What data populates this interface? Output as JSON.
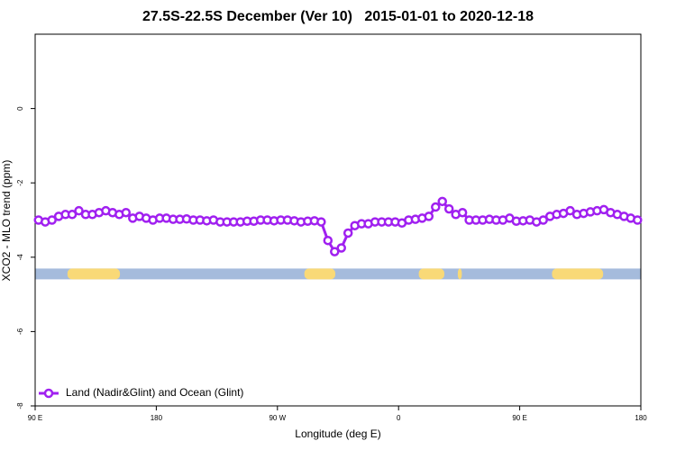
{
  "chart_data": {
    "type": "line",
    "title": "27.5S-22.5S December (Ver 10)   2015-01-01 to 2020-12-18",
    "x_label": "Longitude (deg E)",
    "y_label": "XCO2 - MLO trend (ppm)",
    "xlim": [
      90,
      540
    ],
    "ylim": [
      -8,
      2
    ],
    "xticks": [
      {
        "value": 90,
        "label": "90 E"
      },
      180,
      {
        "value": 270,
        "label": "90 W"
      },
      {
        "value": 360,
        "label": "0"
      },
      {
        "value": 450,
        "label": "90 E"
      },
      {
        "value": 540,
        "label": "180"
      }
    ],
    "yticks": [
      0,
      -2,
      -4,
      -6,
      -8
    ],
    "legend": "bottom-left",
    "x": [
      92.5,
      97.5,
      102.5,
      107.5,
      112.5,
      117.5,
      122.5,
      127.5,
      132.5,
      137.5,
      142.5,
      147.5,
      152.5,
      157.5,
      162.5,
      167.5,
      172.5,
      177.5,
      182.5,
      187.5,
      192.5,
      197.5,
      202.5,
      207.5,
      212.5,
      217.5,
      222.5,
      227.5,
      232.5,
      237.5,
      242.5,
      247.5,
      252.5,
      257.5,
      262.5,
      267.5,
      272.5,
      277.5,
      282.5,
      287.5,
      292.5,
      297.5,
      302.5,
      307.5,
      312.5,
      317.5,
      322.5,
      327.5,
      332.5,
      337.5,
      342.5,
      347.5,
      352.5,
      357.5,
      362.5,
      367.5,
      372.5,
      377.5,
      382.5,
      387.5,
      392.5,
      397.5,
      402.5,
      407.5,
      412.5,
      417.5,
      422.5,
      427.5,
      432.5,
      437.5,
      442.5,
      447.5,
      452.5,
      457.5,
      462.5,
      467.5,
      472.5,
      477.5,
      482.5,
      487.5,
      492.5,
      497.5,
      502.5,
      507.5,
      512.5,
      517.5,
      522.5,
      527.5,
      532.5,
      537.5
    ],
    "series": [
      {
        "name": "Land (Nadir&Glint) and Ocean (Glint)",
        "color": "#a020f0",
        "values": [
          -3.0,
          -3.05,
          -3.0,
          -2.9,
          -2.85,
          -2.85,
          -2.75,
          -2.85,
          -2.85,
          -2.8,
          -2.75,
          -2.8,
          -2.85,
          -2.8,
          -2.95,
          -2.9,
          -2.95,
          -3.0,
          -2.95,
          -2.95,
          -2.98,
          -2.98,
          -2.97,
          -3.0,
          -3.0,
          -3.02,
          -3.0,
          -3.05,
          -3.05,
          -3.05,
          -3.05,
          -3.03,
          -3.03,
          -3.0,
          -3.0,
          -3.02,
          -3.0,
          -3.0,
          -3.02,
          -3.05,
          -3.03,
          -3.02,
          -3.05,
          -3.55,
          -3.85,
          -3.75,
          -3.35,
          -3.15,
          -3.1,
          -3.1,
          -3.05,
          -3.05,
          -3.05,
          -3.05,
          -3.08,
          -3.0,
          -2.98,
          -2.95,
          -2.9,
          -2.65,
          -2.5,
          -2.7,
          -2.85,
          -2.8,
          -3.0,
          -3.0,
          -3.0,
          -2.98,
          -3.0,
          -3.0,
          -2.95,
          -3.03,
          -3.02,
          -3.0,
          -3.05,
          -3.0,
          -2.9,
          -2.85,
          -2.82,
          -2.75,
          -2.85,
          -2.82,
          -2.78,
          -2.75,
          -2.72,
          -2.8,
          -2.85,
          -2.9,
          -2.95,
          -3.0
        ]
      }
    ],
    "surface": {
      "level": -4.45,
      "ocean_color": "#a5bbdc",
      "land_color": "#f9d977",
      "land": [
        [
          114,
          153
        ],
        [
          290,
          313
        ],
        [
          375,
          394
        ],
        [
          404,
          407
        ],
        [
          474,
          512
        ]
      ]
    }
  }
}
